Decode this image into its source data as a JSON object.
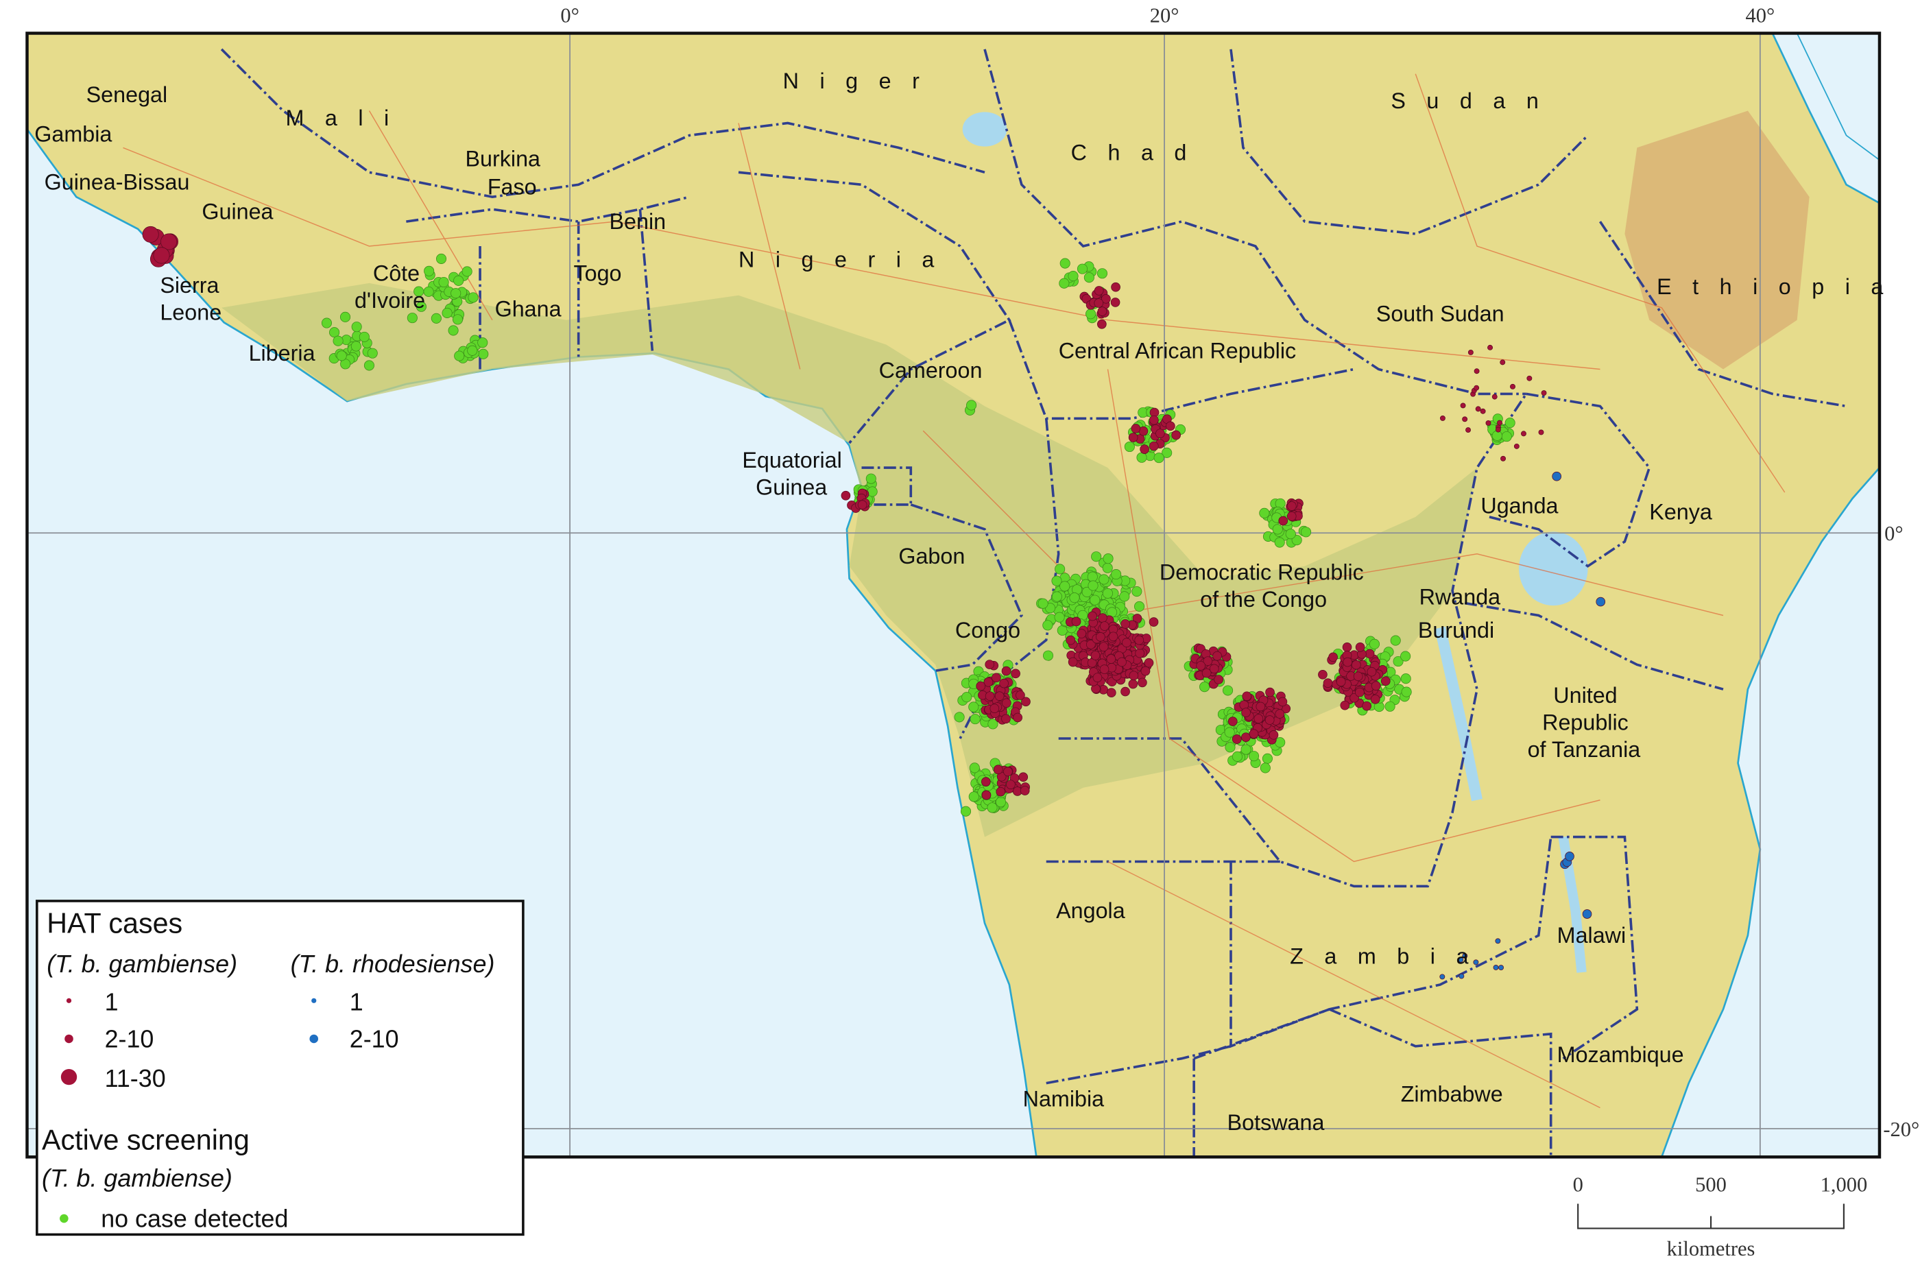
{
  "map": {
    "countries": [
      "Senegal",
      "Gambia",
      "Guinea-Bissau",
      "Guinea",
      "Sierra",
      "Leone",
      "Liberia",
      "M a l i",
      "Burkina",
      "Faso",
      "Côte",
      "d'Ivoire",
      "Ghana",
      "Togo",
      "Benin",
      "N i g e r",
      "N i g e r i a",
      "C h a d",
      "S u d a n",
      "South Sudan",
      "E t h i o p i a",
      "Central African Republic",
      "Cameroon",
      "Equatorial",
      "Guinea",
      "Gabon",
      "Congo",
      "Democratic Republic",
      "of the Congo",
      "Uganda",
      "Kenya",
      "Rwanda",
      "Burundi",
      "United",
      "Republic",
      "of Tanzania",
      "Angola",
      "Z a m b i a",
      "Malawi",
      "Mozambique",
      "Namibia",
      "Zimbabwe",
      "Botswana"
    ],
    "longitude_ticks": [
      "0°",
      "20°",
      "40°"
    ],
    "latitude_ticks": [
      "0°",
      "-20°"
    ],
    "colors": {
      "ocean": "#e3f3fb",
      "land": "#e9df8f",
      "land_green": "#c9cf7e",
      "gambiense": "#a5133a",
      "rhodesiense": "#1f6fc2",
      "screening": "#5fd62a",
      "border": "#2f3f8f"
    }
  },
  "legend": {
    "title": "HAT cases",
    "gambiense_label": "(T. b. gambiense)",
    "rhodesiense_label": "(T. b. rhodesiense)",
    "gambiense_classes": [
      "1",
      "2-10",
      "11-30"
    ],
    "rhodesiense_classes": [
      "1",
      "2-10"
    ],
    "screening_title": "Active screening",
    "screening_label": "(T. b. gambiense)",
    "screening_class": "no case detected"
  },
  "scale_bar": {
    "ticks": [
      "0",
      "500",
      "1,000"
    ],
    "unit": "kilometres"
  },
  "point_clusters": [
    {
      "type": "gambiense",
      "lon": -13.8,
      "lat": 9.6,
      "spread": 0.8,
      "n": 10,
      "size": "11-30"
    },
    {
      "type": "screening",
      "lon": -4.3,
      "lat": 8.2,
      "spread": 1.5,
      "n": 40
    },
    {
      "type": "screening",
      "lon": -7.3,
      "lat": 6.3,
      "spread": 1.2,
      "n": 25
    },
    {
      "type": "screening",
      "lon": -3.3,
      "lat": 6.2,
      "spread": 0.6,
      "n": 15
    },
    {
      "type": "screening",
      "lon": 17.3,
      "lat": 8.1,
      "spread": 1.5,
      "n": 15
    },
    {
      "type": "gambiense",
      "lon": 17.8,
      "lat": 7.8,
      "spread": 1.0,
      "n": 20,
      "size": "2-10"
    },
    {
      "type": "screening",
      "lon": 19.5,
      "lat": 3.3,
      "spread": 1.2,
      "n": 40
    },
    {
      "type": "gambiense",
      "lon": 19.8,
      "lat": 3.4,
      "spread": 0.9,
      "n": 20,
      "size": "2-10"
    },
    {
      "type": "screening",
      "lon": 17.5,
      "lat": -2.5,
      "spread": 2.0,
      "n": 220
    },
    {
      "type": "gambiense",
      "lon": 18.2,
      "lat": -4.0,
      "spread": 1.6,
      "n": 300,
      "size": "2-10"
    },
    {
      "type": "screening",
      "lon": 14.2,
      "lat": -5.5,
      "spread": 1.4,
      "n": 90
    },
    {
      "type": "gambiense",
      "lon": 14.5,
      "lat": -5.5,
      "spread": 1.2,
      "n": 60,
      "size": "2-10"
    },
    {
      "type": "screening",
      "lon": 14.0,
      "lat": -8.6,
      "spread": 1.1,
      "n": 70
    },
    {
      "type": "gambiense",
      "lon": 14.7,
      "lat": -8.4,
      "spread": 0.9,
      "n": 25,
      "size": "2-10"
    },
    {
      "type": "screening",
      "lon": 22.8,
      "lat": -6.5,
      "spread": 1.6,
      "n": 90
    },
    {
      "type": "gambiense",
      "lon": 23.3,
      "lat": -6.2,
      "spread": 1.1,
      "n": 80,
      "size": "2-10"
    },
    {
      "type": "screening",
      "lon": 27.0,
      "lat": -4.8,
      "spread": 1.5,
      "n": 100
    },
    {
      "type": "gambiense",
      "lon": 26.5,
      "lat": -4.8,
      "spread": 1.3,
      "n": 90,
      "size": "2-10"
    },
    {
      "type": "screening",
      "lon": 21.5,
      "lat": -4.5,
      "spread": 0.9,
      "n": 40
    },
    {
      "type": "gambiense",
      "lon": 21.5,
      "lat": -4.5,
      "spread": 0.8,
      "n": 40,
      "size": "2-10"
    },
    {
      "type": "screening",
      "lon": 24.0,
      "lat": 0.3,
      "spread": 0.9,
      "n": 35
    },
    {
      "type": "gambiense",
      "lon": 24.3,
      "lat": 0.7,
      "spread": 0.5,
      "n": 15,
      "size": "2-10"
    },
    {
      "type": "screening",
      "lon": 31.3,
      "lat": 3.4,
      "spread": 0.5,
      "n": 20
    },
    {
      "type": "gambiense",
      "lon": 31.0,
      "lat": 4.5,
      "spread": 2.5,
      "n": 25,
      "size": "1"
    },
    {
      "type": "screening",
      "lon": 9.9,
      "lat": 1.3,
      "spread": 0.6,
      "n": 15
    },
    {
      "type": "gambiense",
      "lon": 9.7,
      "lat": 1.0,
      "spread": 0.7,
      "n": 10,
      "size": "2-10"
    },
    {
      "type": "screening",
      "lon": 13.5,
      "lat": 4.2,
      "spread": 0.2,
      "n": 2
    },
    {
      "type": "rhodesiense",
      "lon": 33.2,
      "lat": 1.9,
      "spread": 0.1,
      "n": 1,
      "size": "2-10"
    },
    {
      "type": "rhodesiense",
      "lon": 34.7,
      "lat": -2.3,
      "spread": 0.1,
      "n": 1,
      "size": "2-10"
    },
    {
      "type": "rhodesiense",
      "lon": 33.5,
      "lat": -11.0,
      "spread": 0.3,
      "n": 3,
      "size": "2-10"
    },
    {
      "type": "rhodesiense",
      "lon": 34.2,
      "lat": -12.8,
      "spread": 0.1,
      "n": 1,
      "size": "2-10"
    },
    {
      "type": "rhodesiense",
      "lon": 30.5,
      "lat": -14.5,
      "spread": 1.5,
      "n": 8,
      "size": "1"
    }
  ]
}
